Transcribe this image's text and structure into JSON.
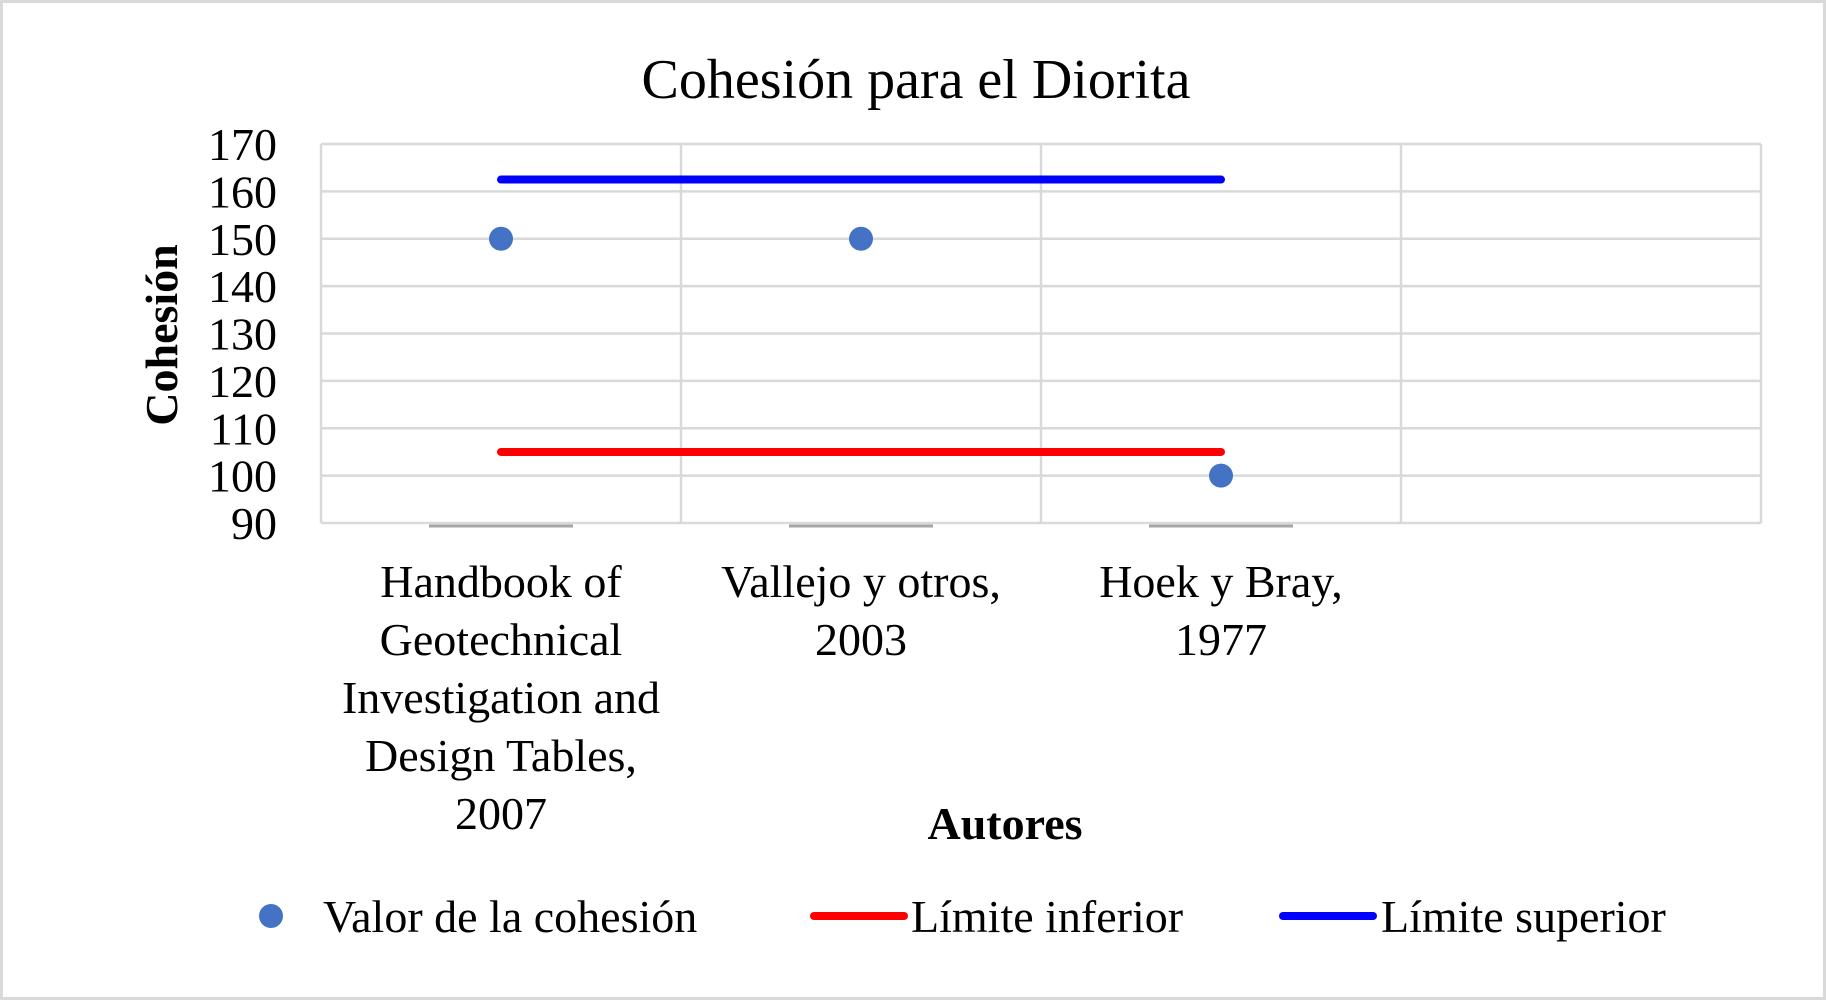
{
  "chart_data": {
    "type": "scatter",
    "title": "Cohesión para el Diorita",
    "xlabel": "Autores",
    "ylabel": "Cohesión",
    "ylim": [
      90,
      170
    ],
    "yticks": [
      "170",
      "160",
      "150",
      "140",
      "130",
      "120",
      "110",
      "100",
      "90"
    ],
    "grid": true,
    "legend_position": "bottom",
    "categories": [
      [
        "Handbook of",
        "Geotechnical",
        "Investigation and",
        "Design Tables,",
        "2007"
      ],
      [
        "Vallejo y otros,",
        "2003"
      ],
      [
        "Hoek y Bray,",
        "1977"
      ]
    ],
    "series": [
      {
        "name": "Valor de la cohesión",
        "kind": "markers",
        "color": "#4472c4",
        "values": [
          150,
          150,
          100
        ]
      },
      {
        "name": "Límite inferior",
        "kind": "line",
        "color": "#ff0000",
        "values": [
          105,
          105,
          105
        ]
      },
      {
        "name": "Límite superior",
        "kind": "line",
        "color": "#0000ff",
        "values": [
          162.5,
          162.5,
          162.5
        ]
      }
    ]
  }
}
